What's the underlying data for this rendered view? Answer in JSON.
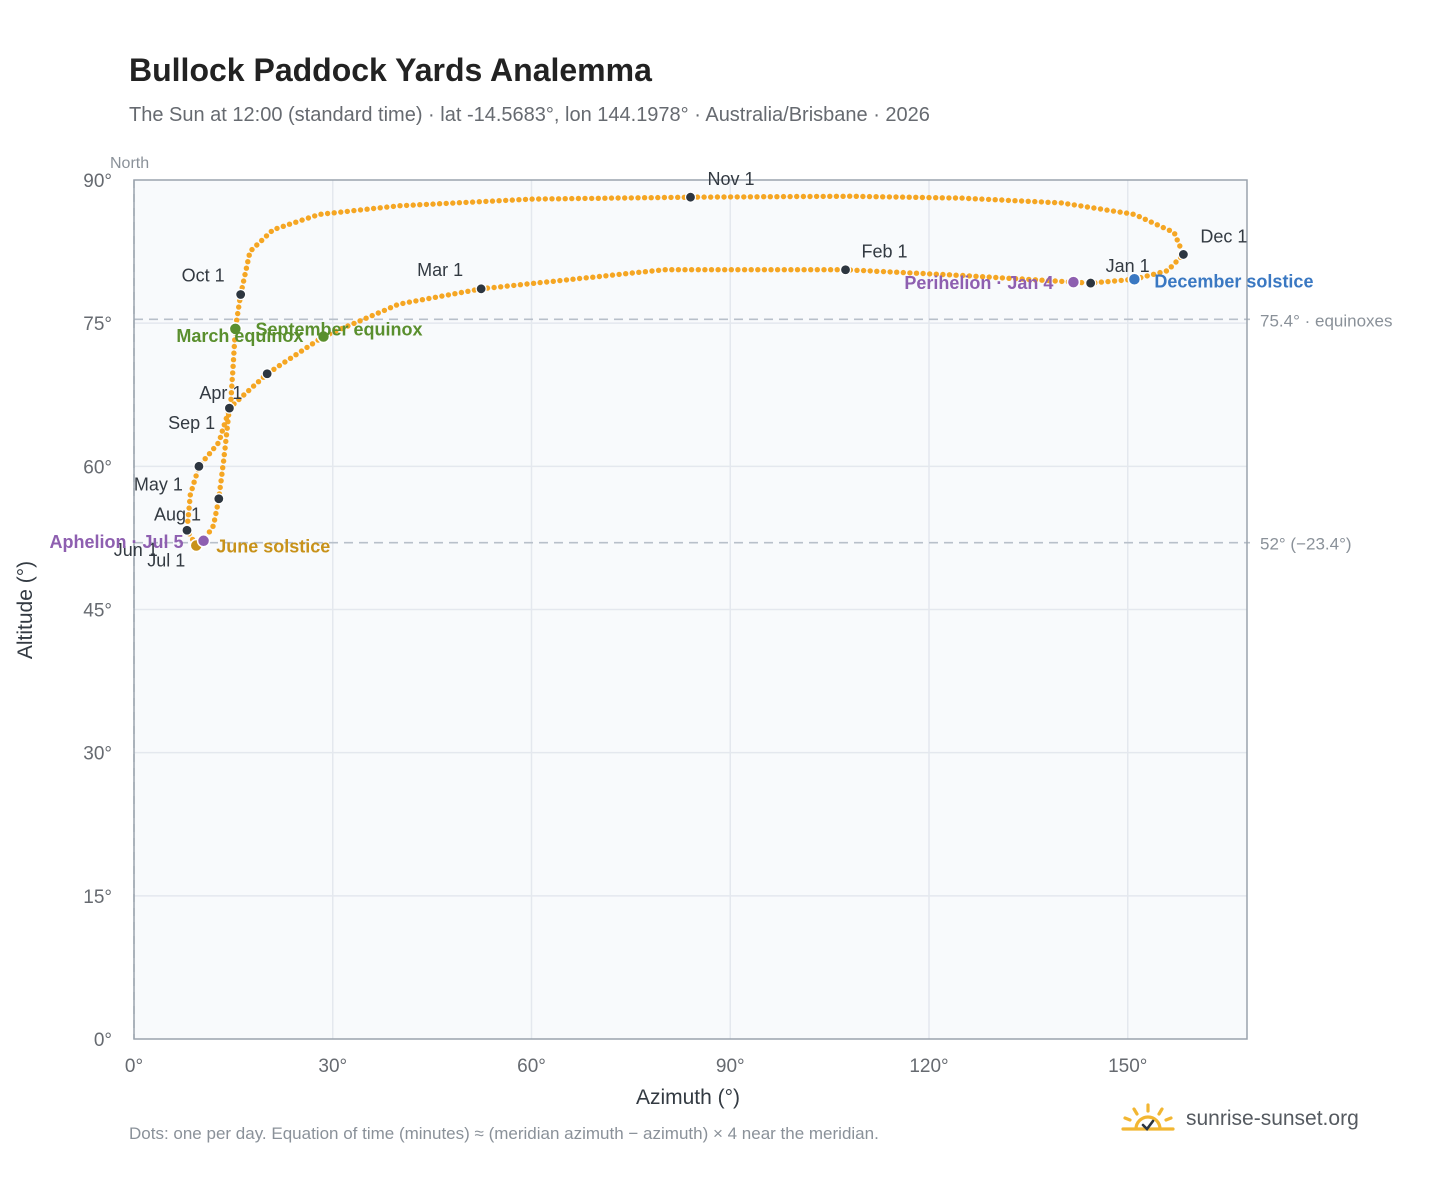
{
  "title": "Bullock Paddock Yards Analemma",
  "subtitle": "The Sun at 12:00 (standard time) · lat -14.5683°, lon 144.1978° · Australia/Brisbane · 2026",
  "footnote": "Dots: one per day. Equation of time (minutes) ≈ (meridian azimuth − azimuth) × 4 near the meridian.",
  "brand": "sunrise-sunset.org",
  "colors": {
    "analemma": "#f5a623",
    "month_marker": "#2d3640",
    "equinox": "#5a8f2e",
    "june_solstice": "#c8921a",
    "december_solstice": "#3a78c2",
    "apsis": "#8e5fb0",
    "grid": "#e4e8ee",
    "plot_bg": "#f8fafc",
    "reference_line": "#b8c0ca"
  },
  "chart_data": {
    "type": "scatter",
    "xlabel": "Azimuth (°)",
    "ylabel": "Altitude (°)",
    "xlim": [
      0,
      168
    ],
    "ylim": [
      0,
      90
    ],
    "x_ticks": [
      "0°",
      "30°",
      "60°",
      "90°",
      "120°",
      "150°"
    ],
    "y_ticks": [
      "0°",
      "15°",
      "30°",
      "45°",
      "60°",
      "75°",
      "90°"
    ],
    "grid": true,
    "north_label": "North",
    "reference_lines": [
      {
        "altitude": 75.4,
        "label": "75.4° · equinoxes"
      },
      {
        "altitude": 52,
        "label": "52° (−23.4°)"
      }
    ],
    "path_keypoints": [
      {
        "x": 151,
        "y": 79.6
      },
      {
        "x": 156,
        "y": 80.5
      },
      {
        "x": 158.4,
        "y": 82.2
      },
      {
        "x": 157,
        "y": 84.5
      },
      {
        "x": 151,
        "y": 86.4
      },
      {
        "x": 140,
        "y": 87.6
      },
      {
        "x": 125,
        "y": 88.1
      },
      {
        "x": 108,
        "y": 88.3
      },
      {
        "x": 84,
        "y": 88.2
      },
      {
        "x": 60,
        "y": 88.0
      },
      {
        "x": 40,
        "y": 87.3
      },
      {
        "x": 28,
        "y": 86.4
      },
      {
        "x": 21,
        "y": 84.8
      },
      {
        "x": 17.5,
        "y": 82.5
      },
      {
        "x": 16.1,
        "y": 78.0
      },
      {
        "x": 15.3,
        "y": 74.4
      },
      {
        "x": 14.6,
        "y": 66.5
      },
      {
        "x": 12.8,
        "y": 62.5
      },
      {
        "x": 9.8,
        "y": 60.0
      },
      {
        "x": 8.5,
        "y": 57.0
      },
      {
        "x": 8.0,
        "y": 53.3
      },
      {
        "x": 9.4,
        "y": 51.7
      },
      {
        "x": 10.5,
        "y": 52.2
      },
      {
        "x": 12.0,
        "y": 53.8
      },
      {
        "x": 12.8,
        "y": 56.6
      },
      {
        "x": 13.6,
        "y": 61.0
      },
      {
        "x": 14.4,
        "y": 66.1
      },
      {
        "x": 20.1,
        "y": 69.7
      },
      {
        "x": 28.6,
        "y": 73.6
      },
      {
        "x": 40,
        "y": 77.0
      },
      {
        "x": 52.4,
        "y": 78.6
      },
      {
        "x": 80,
        "y": 80.6
      },
      {
        "x": 107.4,
        "y": 80.6
      },
      {
        "x": 125,
        "y": 80.0
      },
      {
        "x": 141.8,
        "y": 79.3
      },
      {
        "x": 144.4,
        "y": 79.2
      },
      {
        "x": 151,
        "y": 79.6
      }
    ],
    "month_markers": [
      {
        "label": "Jan 1",
        "x": 144.4,
        "y": 79.2,
        "anchor": "start",
        "dx": 15,
        "dy": -11
      },
      {
        "label": "Feb 1",
        "x": 107.4,
        "y": 80.6,
        "anchor": "start",
        "dx": 16,
        "dy": -12
      },
      {
        "label": "Mar 1",
        "x": 52.4,
        "y": 78.6,
        "anchor": "end",
        "dx": -18,
        "dy": -13
      },
      {
        "label": "Apr 1",
        "x": 14.4,
        "y": 66.1,
        "anchor": "start",
        "dx": -30,
        "dy": -9
      },
      {
        "label": "May 1",
        "x": 9.8,
        "y": 60.0,
        "anchor": "end",
        "dx": -16,
        "dy": 24
      },
      {
        "label": "Jun 1",
        "x": 12.8,
        "y": 56.6,
        "anchor": "end",
        "dx": -61,
        "dy": 57
      },
      {
        "label": "Jul 1",
        "x": 9.4,
        "y": 51.7,
        "anchor": "end",
        "dx": -11,
        "dy": 21
      },
      {
        "label": "Aug 1",
        "x": 8.0,
        "y": 53.3,
        "anchor": "end",
        "dx": 14,
        "dy": -10
      },
      {
        "label": "Sep 1",
        "x": 20.1,
        "y": 69.7,
        "anchor": "end",
        "dx": -52,
        "dy": 55
      },
      {
        "label": "Oct 1",
        "x": 16.1,
        "y": 78.0,
        "anchor": "end",
        "dx": -16,
        "dy": -13
      },
      {
        "label": "Nov 1",
        "x": 84.0,
        "y": 88.2,
        "anchor": "start",
        "dx": 17,
        "dy": -12
      },
      {
        "label": "Dec 1",
        "x": 158.4,
        "y": 82.2,
        "anchor": "start",
        "dx": 17,
        "dy": -12
      }
    ],
    "events": [
      {
        "label": "March equinox",
        "x": 15.3,
        "y": 74.4,
        "color": "#5a8f2e",
        "anchor": "end",
        "dx": 68,
        "dy": 13
      },
      {
        "label": "September equinox",
        "x": 28.6,
        "y": 73.6,
        "color": "#5a8f2e",
        "anchor": "start",
        "dx": -68,
        "dy": -1
      },
      {
        "label": "June solstice",
        "x": 9.4,
        "y": 51.7,
        "color": "#c8921a",
        "anchor": "start",
        "dx": 20,
        "dy": 7
      },
      {
        "label": "December solstice",
        "x": 151.0,
        "y": 79.6,
        "color": "#3a78c2",
        "anchor": "start",
        "dx": 20,
        "dy": 8
      },
      {
        "label": "Aphelion · Jul 5",
        "x": 10.5,
        "y": 52.2,
        "color": "#8e5fb0",
        "anchor": "end",
        "dx": -20,
        "dy": 7
      },
      {
        "label": "Perihelion · Jan 4",
        "x": 141.8,
        "y": 79.3,
        "color": "#8e5fb0",
        "anchor": "end",
        "dx": -20,
        "dy": 7
      }
    ]
  }
}
